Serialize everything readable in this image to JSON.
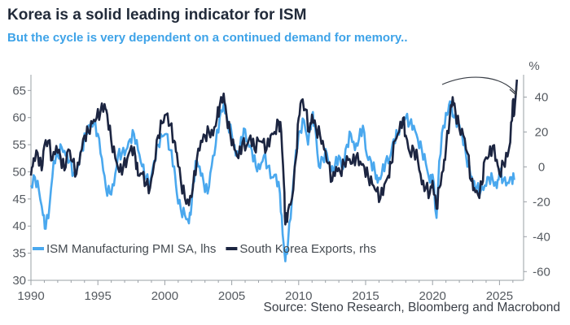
{
  "header": {
    "title": "Korea is a solid leading indicator for ISM",
    "subtitle": "But the cycle is very dependent on a continued demand for memory.."
  },
  "footer": {
    "source": "Source: Steno Research, Bloomberg and Macrobond"
  },
  "chart_data": {
    "type": "line",
    "title": "Korea is a solid leading indicator for ISM",
    "subtitle": "But the cycle is very dependent on a continued demand for memory..",
    "x_ticks": [
      "1990",
      "1995",
      "2000",
      "2005",
      "2010",
      "2015",
      "2020",
      "2025"
    ],
    "y_left_ticks": [
      "65",
      "60",
      "55",
      "50",
      "45",
      "40",
      "35",
      "30"
    ],
    "y_right_ticks": [
      "40",
      "20",
      "0",
      "-20",
      "-40",
      "-60"
    ],
    "y_right_unit": "%",
    "ylim_left": [
      30,
      67
    ],
    "ylim_right": [
      -65,
      50
    ],
    "xlim": [
      1990,
      2026.8
    ],
    "legend_position": "bottom-left",
    "grid": false,
    "annotation": "curved arrow pointing to latest export spike",
    "series": [
      {
        "name": "ISM Manufacturing PMI SA, lhs",
        "axis": "left",
        "color": "#4aa8ee",
        "points": [
          [
            1990.0,
            47.5
          ],
          [
            1990.3,
            49
          ],
          [
            1990.6,
            46.5
          ],
          [
            1990.9,
            42
          ],
          [
            1991.1,
            39.5
          ],
          [
            1991.4,
            44
          ],
          [
            1991.7,
            52
          ],
          [
            1992.0,
            53
          ],
          [
            1992.3,
            54.5
          ],
          [
            1992.6,
            53
          ],
          [
            1992.9,
            52
          ],
          [
            1993.2,
            49.5
          ],
          [
            1993.5,
            51
          ],
          [
            1993.8,
            54
          ],
          [
            1994.1,
            57
          ],
          [
            1994.4,
            58.5
          ],
          [
            1994.7,
            59
          ],
          [
            1995.0,
            57
          ],
          [
            1995.3,
            52.5
          ],
          [
            1995.6,
            47
          ],
          [
            1995.9,
            46
          ],
          [
            1996.2,
            47.5
          ],
          [
            1996.5,
            53
          ],
          [
            1996.8,
            53.5
          ],
          [
            1997.1,
            54
          ],
          [
            1997.4,
            56
          ],
          [
            1997.7,
            57
          ],
          [
            1998.0,
            54
          ],
          [
            1998.3,
            51
          ],
          [
            1998.6,
            49
          ],
          [
            1998.9,
            48
          ],
          [
            1999.2,
            52
          ],
          [
            1999.5,
            55
          ],
          [
            1999.8,
            56.5
          ],
          [
            2000.1,
            57
          ],
          [
            2000.4,
            54
          ],
          [
            2000.7,
            51
          ],
          [
            2000.9,
            46
          ],
          [
            2001.2,
            43
          ],
          [
            2001.5,
            42
          ],
          [
            2001.8,
            40.5
          ],
          [
            2002.0,
            44
          ],
          [
            2002.3,
            52
          ],
          [
            2002.6,
            51
          ],
          [
            2002.9,
            48
          ],
          [
            2003.2,
            46
          ],
          [
            2003.5,
            51
          ],
          [
            2003.8,
            55
          ],
          [
            2004.1,
            60
          ],
          [
            2004.4,
            62.5
          ],
          [
            2004.7,
            59
          ],
          [
            2005.0,
            57
          ],
          [
            2005.3,
            53
          ],
          [
            2005.6,
            54
          ],
          [
            2005.9,
            58
          ],
          [
            2006.2,
            55.5
          ],
          [
            2006.5,
            54
          ],
          [
            2006.8,
            51
          ],
          [
            2007.1,
            50.5
          ],
          [
            2007.4,
            53
          ],
          [
            2007.7,
            51
          ],
          [
            2008.0,
            49
          ],
          [
            2008.3,
            49.5
          ],
          [
            2008.6,
            46
          ],
          [
            2008.8,
            38.5
          ],
          [
            2009.0,
            33.5
          ],
          [
            2009.2,
            37
          ],
          [
            2009.5,
            45
          ],
          [
            2009.8,
            54
          ],
          [
            2010.1,
            57.5
          ],
          [
            2010.4,
            59.5
          ],
          [
            2010.7,
            55
          ],
          [
            2011.0,
            60.5
          ],
          [
            2011.2,
            59
          ],
          [
            2011.5,
            51
          ],
          [
            2011.8,
            52.5
          ],
          [
            2012.1,
            53.5
          ],
          [
            2012.4,
            50
          ],
          [
            2012.7,
            51
          ],
          [
            2013.0,
            53
          ],
          [
            2013.3,
            50.5
          ],
          [
            2013.6,
            55
          ],
          [
            2013.9,
            57
          ],
          [
            2014.2,
            54
          ],
          [
            2014.5,
            56
          ],
          [
            2014.8,
            58.5
          ],
          [
            2015.1,
            53
          ],
          [
            2015.4,
            52
          ],
          [
            2015.7,
            50
          ],
          [
            2015.9,
            48
          ],
          [
            2016.2,
            49.5
          ],
          [
            2016.5,
            52
          ],
          [
            2016.8,
            52.5
          ],
          [
            2017.1,
            56
          ],
          [
            2017.4,
            57
          ],
          [
            2017.7,
            59
          ],
          [
            2018.0,
            60
          ],
          [
            2018.3,
            59
          ],
          [
            2018.6,
            58.5
          ],
          [
            2018.9,
            56
          ],
          [
            2019.2,
            54
          ],
          [
            2019.5,
            51.5
          ],
          [
            2019.8,
            48
          ],
          [
            2020.0,
            49.5
          ],
          [
            2020.3,
            41.5
          ],
          [
            2020.5,
            52
          ],
          [
            2020.8,
            58.5
          ],
          [
            2021.1,
            60.5
          ],
          [
            2021.3,
            63
          ],
          [
            2021.6,
            60
          ],
          [
            2021.9,
            59
          ],
          [
            2022.2,
            57
          ],
          [
            2022.5,
            53
          ],
          [
            2022.8,
            50
          ],
          [
            2023.0,
            48
          ],
          [
            2023.3,
            47
          ],
          [
            2023.6,
            46.5
          ],
          [
            2023.9,
            47.5
          ],
          [
            2024.2,
            49
          ],
          [
            2024.5,
            48.5
          ],
          [
            2024.8,
            47
          ],
          [
            2025.0,
            50
          ],
          [
            2025.3,
            48.5
          ],
          [
            2025.6,
            48
          ],
          [
            2025.9,
            49
          ],
          [
            2026.1,
            48.5
          ]
        ]
      },
      {
        "name": "South Korea Exports, rhs",
        "axis": "right",
        "color": "#1c2541",
        "points": [
          [
            1990.0,
            -5
          ],
          [
            1990.2,
            5
          ],
          [
            1990.5,
            8
          ],
          [
            1990.8,
            -2
          ],
          [
            1991.0,
            12
          ],
          [
            1991.3,
            15
          ],
          [
            1991.6,
            4
          ],
          [
            1991.9,
            12
          ],
          [
            1992.2,
            6
          ],
          [
            1992.5,
            -2
          ],
          [
            1992.8,
            10
          ],
          [
            1993.1,
            3
          ],
          [
            1993.4,
            -4
          ],
          [
            1993.7,
            8
          ],
          [
            1994.0,
            18
          ],
          [
            1994.3,
            20
          ],
          [
            1994.6,
            25
          ],
          [
            1994.9,
            28
          ],
          [
            1995.2,
            32
          ],
          [
            1995.5,
            36
          ],
          [
            1995.7,
            30
          ],
          [
            1996.0,
            15
          ],
          [
            1996.3,
            5
          ],
          [
            1996.6,
            -3
          ],
          [
            1996.9,
            0
          ],
          [
            1997.2,
            5
          ],
          [
            1997.5,
            12
          ],
          [
            1997.8,
            6
          ],
          [
            1998.0,
            -5
          ],
          [
            1998.3,
            -4
          ],
          [
            1998.6,
            -10
          ],
          [
            1998.9,
            -12
          ],
          [
            1999.2,
            2
          ],
          [
            1999.5,
            18
          ],
          [
            1999.8,
            25
          ],
          [
            2000.1,
            30
          ],
          [
            2000.4,
            24
          ],
          [
            2000.7,
            15
          ],
          [
            2000.9,
            8
          ],
          [
            2001.2,
            -8
          ],
          [
            2001.5,
            -18
          ],
          [
            2001.8,
            -22
          ],
          [
            2002.1,
            -12
          ],
          [
            2002.4,
            5
          ],
          [
            2002.7,
            15
          ],
          [
            2003.0,
            18
          ],
          [
            2003.3,
            20
          ],
          [
            2003.6,
            18
          ],
          [
            2003.9,
            28
          ],
          [
            2004.1,
            35
          ],
          [
            2004.4,
            42
          ],
          [
            2004.6,
            30
          ],
          [
            2004.9,
            18
          ],
          [
            2005.2,
            10
          ],
          [
            2005.5,
            5
          ],
          [
            2005.8,
            14
          ],
          [
            2006.1,
            12
          ],
          [
            2006.4,
            18
          ],
          [
            2006.7,
            10
          ],
          [
            2007.0,
            15
          ],
          [
            2007.3,
            14
          ],
          [
            2007.6,
            10
          ],
          [
            2007.9,
            18
          ],
          [
            2008.2,
            20
          ],
          [
            2008.5,
            26
          ],
          [
            2008.7,
            20
          ],
          [
            2008.9,
            -10
          ],
          [
            2009.0,
            -33
          ],
          [
            2009.2,
            -25
          ],
          [
            2009.5,
            -18
          ],
          [
            2009.8,
            5
          ],
          [
            2010.0,
            28
          ],
          [
            2010.2,
            38
          ],
          [
            2010.5,
            33
          ],
          [
            2010.8,
            20
          ],
          [
            2011.0,
            30
          ],
          [
            2011.3,
            22
          ],
          [
            2011.6,
            18
          ],
          [
            2011.9,
            10
          ],
          [
            2012.2,
            2
          ],
          [
            2012.5,
            -8
          ],
          [
            2012.8,
            0
          ],
          [
            2013.1,
            -3
          ],
          [
            2013.4,
            2
          ],
          [
            2013.7,
            4
          ],
          [
            2014.0,
            2
          ],
          [
            2014.3,
            6
          ],
          [
            2014.6,
            3
          ],
          [
            2014.9,
            0
          ],
          [
            2015.2,
            -6
          ],
          [
            2015.5,
            -10
          ],
          [
            2015.8,
            -14
          ],
          [
            2016.1,
            -18
          ],
          [
            2016.4,
            -10
          ],
          [
            2016.7,
            -5
          ],
          [
            2016.9,
            2
          ],
          [
            2017.2,
            15
          ],
          [
            2017.5,
            20
          ],
          [
            2017.8,
            28
          ],
          [
            2018.0,
            18
          ],
          [
            2018.3,
            8
          ],
          [
            2018.6,
            10
          ],
          [
            2018.9,
            4
          ],
          [
            2019.2,
            -10
          ],
          [
            2019.5,
            -12
          ],
          [
            2019.8,
            -15
          ],
          [
            2020.0,
            -8
          ],
          [
            2020.3,
            -24
          ],
          [
            2020.5,
            -12
          ],
          [
            2020.8,
            -2
          ],
          [
            2021.0,
            10
          ],
          [
            2021.3,
            30
          ],
          [
            2021.5,
            40
          ],
          [
            2021.7,
            32
          ],
          [
            2022.0,
            22
          ],
          [
            2022.3,
            18
          ],
          [
            2022.6,
            8
          ],
          [
            2022.9,
            -8
          ],
          [
            2023.1,
            -12
          ],
          [
            2023.4,
            -16
          ],
          [
            2023.7,
            -10
          ],
          [
            2023.9,
            4
          ],
          [
            2024.2,
            6
          ],
          [
            2024.5,
            12
          ],
          [
            2024.8,
            4
          ],
          [
            2025.0,
            -4
          ],
          [
            2025.3,
            2
          ],
          [
            2025.6,
            6
          ],
          [
            2025.8,
            14
          ],
          [
            2026.0,
            38
          ],
          [
            2026.1,
            30
          ],
          [
            2026.3,
            50
          ]
        ]
      }
    ]
  }
}
